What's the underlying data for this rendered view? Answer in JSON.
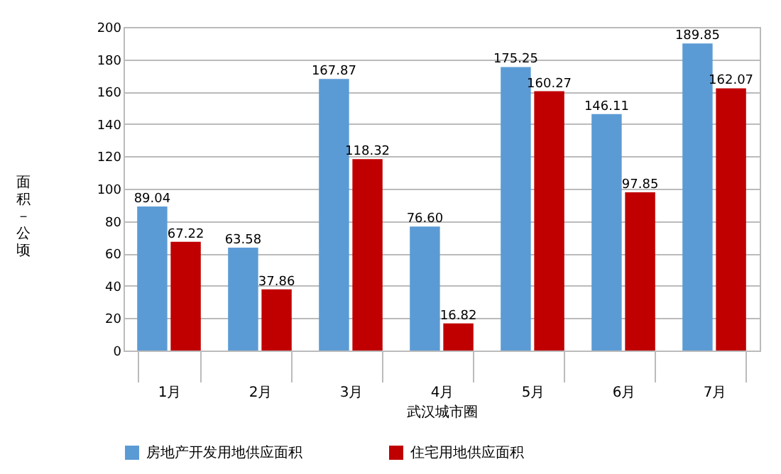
{
  "chart_data": {
    "type": "bar",
    "xlabel": "武汉城市圈",
    "ylabel": "面积－公顷",
    "categories": [
      "1月",
      "2月",
      "3月",
      "4月",
      "5月",
      "6月",
      "7月"
    ],
    "series": [
      {
        "name": "房地产开发用地供应面积",
        "color": "#5b9bd5",
        "values": [
          89.04,
          63.58,
          167.87,
          76.6,
          175.25,
          146.11,
          189.85
        ],
        "value_labels": [
          "89.04",
          "63.58",
          "167.87",
          "76.60",
          "175.25",
          "146.11",
          "189.85"
        ]
      },
      {
        "name": "住宅用地供应面积",
        "color": "#c00000",
        "values": [
          67.22,
          37.86,
          118.32,
          16.82,
          160.27,
          97.85,
          162.07
        ],
        "value_labels": [
          "67.22",
          "37.86",
          "118.32",
          "16.82",
          "160.27",
          "97.85",
          "162.07"
        ]
      }
    ],
    "ylim": [
      0,
      200
    ],
    "yticks": [
      0,
      20,
      40,
      60,
      80,
      100,
      120,
      140,
      160,
      180,
      200
    ],
    "grid": "y",
    "legend": "bottom"
  }
}
